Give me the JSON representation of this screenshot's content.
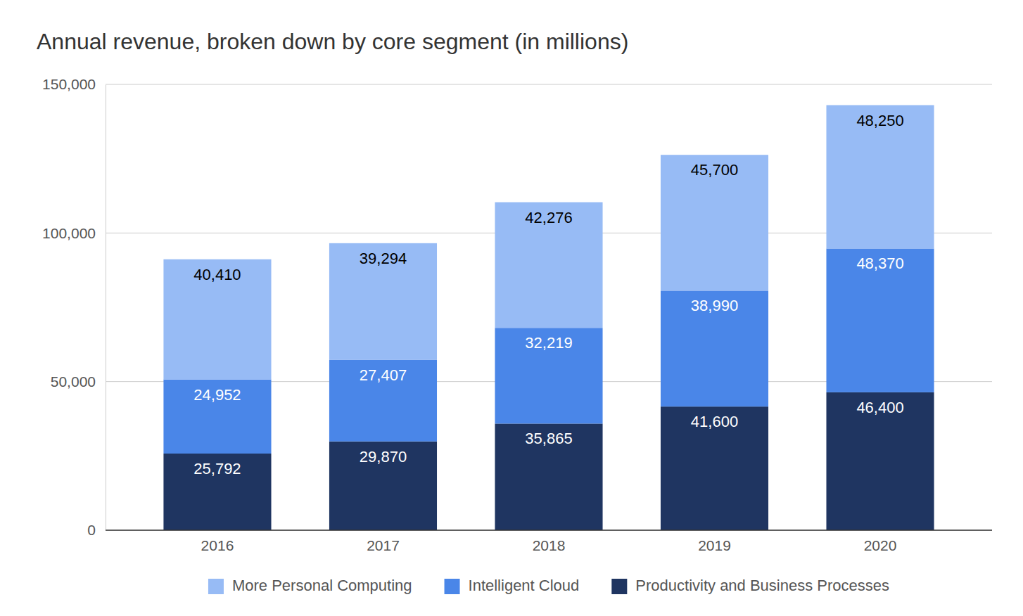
{
  "chart_data": {
    "type": "bar",
    "title": "Annual revenue, broken down by core segment (in millions)",
    "categories": [
      "2016",
      "2017",
      "2018",
      "2019",
      "2020"
    ],
    "series": [
      {
        "name": "More Personal Computing",
        "color": "#97bbf5",
        "values": [
          40410,
          39294,
          42276,
          45700,
          48250
        ],
        "value_labels": [
          "40,410",
          "39,294",
          "42,276",
          "45,700",
          "48,250"
        ]
      },
      {
        "name": "Intelligent Cloud",
        "color": "#4a86e8",
        "values": [
          24952,
          27407,
          32219,
          38990,
          48370
        ],
        "value_labels": [
          "24,952",
          "27,407",
          "32,219",
          "38,990",
          "48,370"
        ]
      },
      {
        "name": "Productivity and Business Processes",
        "color": "#1f3561",
        "values": [
          25792,
          29870,
          35865,
          41600,
          46400
        ],
        "value_labels": [
          "25,792",
          "29,870",
          "35,865",
          "41,600",
          "46,400"
        ]
      }
    ],
    "ylim": [
      0,
      150000
    ],
    "yticks": [
      0,
      {
        "value": 50000,
        "label": "50,000"
      },
      {
        "value": 100000,
        "label": "100,000"
      },
      {
        "value": 150000,
        "label": "150,000"
      }
    ],
    "grid": true,
    "stacked": true,
    "data_labels": true,
    "legend": "bottom"
  }
}
